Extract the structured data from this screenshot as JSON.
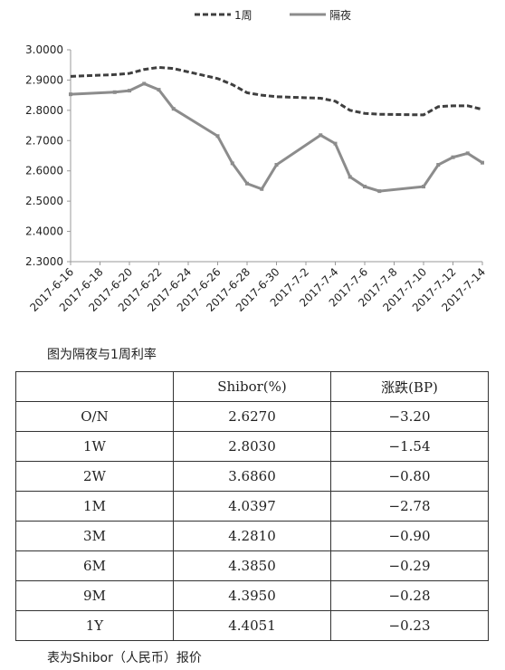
{
  "chart_data": {
    "type": "line",
    "x": [
      "2017-6-16",
      "2017-6-19",
      "2017-6-20",
      "2017-6-21",
      "2017-6-22",
      "2017-6-23",
      "2017-6-26",
      "2017-6-27",
      "2017-6-28",
      "2017-6-29",
      "2017-6-30",
      "2017-7-3",
      "2017-7-4",
      "2017-7-5",
      "2017-7-6",
      "2017-7-7",
      "2017-7-10",
      "2017-7-11",
      "2017-7-12",
      "2017-7-13",
      "2017-7-14"
    ],
    "series": [
      {
        "name": "1周",
        "color": "#3f3f3f",
        "style": "dashed",
        "values": [
          2.912,
          2.918,
          2.922,
          2.935,
          2.942,
          2.938,
          2.905,
          2.885,
          2.858,
          2.85,
          2.845,
          2.84,
          2.83,
          2.8,
          2.79,
          2.787,
          2.785,
          2.812,
          2.815,
          2.815,
          2.803
        ]
      },
      {
        "name": "隔夜",
        "color": "#8c8c8c",
        "style": "solid",
        "values": [
          2.853,
          2.86,
          2.865,
          2.888,
          2.868,
          2.805,
          2.715,
          2.625,
          2.558,
          2.54,
          2.62,
          2.718,
          2.69,
          2.58,
          2.548,
          2.533,
          2.548,
          2.62,
          2.645,
          2.658,
          2.627
        ]
      }
    ],
    "xlim": [
      "2017-6-16",
      "2017-7-14"
    ],
    "xticks": [
      "2017-6-16",
      "2017-6-18",
      "2017-6-20",
      "2017-6-22",
      "2017-6-24",
      "2017-6-26",
      "2017-6-28",
      "2017-6-30",
      "2017-7-2",
      "2017-7-4",
      "2017-7-6",
      "2017-7-8",
      "2017-7-10",
      "2017-7-12",
      "2017-7-14"
    ],
    "ylim": [
      2.3,
      3.0
    ],
    "yticks": [
      {
        "value": 2.3,
        "label": "2.3000"
      },
      {
        "value": 2.4,
        "label": "2.4000"
      },
      {
        "value": 2.5,
        "label": "2.5000"
      },
      {
        "value": 2.6,
        "label": "2.6000"
      },
      {
        "value": 2.7,
        "label": "2.7000"
      },
      {
        "value": 2.8,
        "label": "2.8000"
      },
      {
        "value": 2.9,
        "label": "2.9000"
      },
      {
        "value": 3.0,
        "label": "3.0000"
      }
    ],
    "legend": "top"
  },
  "chart_caption": "图为隔夜与1周利率",
  "table": {
    "header": [
      "Shibor(%)",
      "涨跌(BP)"
    ],
    "rows": [
      [
        "O/N",
        "2.6270",
        "−3.20"
      ],
      [
        "1W",
        "2.8030",
        "−1.54"
      ],
      [
        "2W",
        "3.6860",
        "−0.80"
      ],
      [
        "1M",
        "4.0397",
        "−2.78"
      ],
      [
        "3M",
        "4.2810",
        "−0.90"
      ],
      [
        "6M",
        "4.3850",
        "−0.29"
      ],
      [
        "9M",
        "4.3950",
        "−0.28"
      ],
      [
        "1Y",
        "4.4051",
        "−0.23"
      ]
    ]
  },
  "table_caption": "表为Shibor（人民币）报价"
}
